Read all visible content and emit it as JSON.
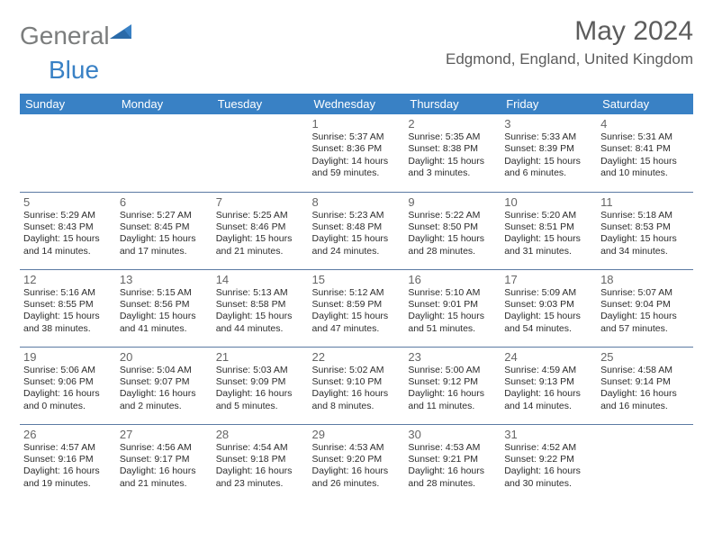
{
  "logo": {
    "word1": "General",
    "word2": "Blue",
    "word1_color": "#7b7d7d",
    "word2_color": "#3981c5",
    "shape_color": "#3981c5"
  },
  "title": "May 2024",
  "location": "Edgmond, England, United Kingdom",
  "colors": {
    "header_bg": "#3981c5",
    "header_text": "#ffffff",
    "border": "#5b7aa3",
    "daynum": "#666666",
    "body_text": "#2c2c2c",
    "title_text": "#5c5c5c",
    "page_bg": "#ffffff"
  },
  "typography": {
    "title_fontsize": 30,
    "location_fontsize": 17,
    "weekday_fontsize": 13,
    "daynum_fontsize": 13,
    "cell_fontsize": 10.5
  },
  "calendar": {
    "type": "table",
    "columns": [
      "Sunday",
      "Monday",
      "Tuesday",
      "Wednesday",
      "Thursday",
      "Friday",
      "Saturday"
    ],
    "weeks": [
      [
        null,
        null,
        null,
        {
          "n": "1",
          "sr": "Sunrise: 5:37 AM",
          "ss": "Sunset: 8:36 PM",
          "dl": "Daylight: 14 hours\nand 59 minutes."
        },
        {
          "n": "2",
          "sr": "Sunrise: 5:35 AM",
          "ss": "Sunset: 8:38 PM",
          "dl": "Daylight: 15 hours\nand 3 minutes."
        },
        {
          "n": "3",
          "sr": "Sunrise: 5:33 AM",
          "ss": "Sunset: 8:39 PM",
          "dl": "Daylight: 15 hours\nand 6 minutes."
        },
        {
          "n": "4",
          "sr": "Sunrise: 5:31 AM",
          "ss": "Sunset: 8:41 PM",
          "dl": "Daylight: 15 hours\nand 10 minutes."
        }
      ],
      [
        {
          "n": "5",
          "sr": "Sunrise: 5:29 AM",
          "ss": "Sunset: 8:43 PM",
          "dl": "Daylight: 15 hours\nand 14 minutes."
        },
        {
          "n": "6",
          "sr": "Sunrise: 5:27 AM",
          "ss": "Sunset: 8:45 PM",
          "dl": "Daylight: 15 hours\nand 17 minutes."
        },
        {
          "n": "7",
          "sr": "Sunrise: 5:25 AM",
          "ss": "Sunset: 8:46 PM",
          "dl": "Daylight: 15 hours\nand 21 minutes."
        },
        {
          "n": "8",
          "sr": "Sunrise: 5:23 AM",
          "ss": "Sunset: 8:48 PM",
          "dl": "Daylight: 15 hours\nand 24 minutes."
        },
        {
          "n": "9",
          "sr": "Sunrise: 5:22 AM",
          "ss": "Sunset: 8:50 PM",
          "dl": "Daylight: 15 hours\nand 28 minutes."
        },
        {
          "n": "10",
          "sr": "Sunrise: 5:20 AM",
          "ss": "Sunset: 8:51 PM",
          "dl": "Daylight: 15 hours\nand 31 minutes."
        },
        {
          "n": "11",
          "sr": "Sunrise: 5:18 AM",
          "ss": "Sunset: 8:53 PM",
          "dl": "Daylight: 15 hours\nand 34 minutes."
        }
      ],
      [
        {
          "n": "12",
          "sr": "Sunrise: 5:16 AM",
          "ss": "Sunset: 8:55 PM",
          "dl": "Daylight: 15 hours\nand 38 minutes."
        },
        {
          "n": "13",
          "sr": "Sunrise: 5:15 AM",
          "ss": "Sunset: 8:56 PM",
          "dl": "Daylight: 15 hours\nand 41 minutes."
        },
        {
          "n": "14",
          "sr": "Sunrise: 5:13 AM",
          "ss": "Sunset: 8:58 PM",
          "dl": "Daylight: 15 hours\nand 44 minutes."
        },
        {
          "n": "15",
          "sr": "Sunrise: 5:12 AM",
          "ss": "Sunset: 8:59 PM",
          "dl": "Daylight: 15 hours\nand 47 minutes."
        },
        {
          "n": "16",
          "sr": "Sunrise: 5:10 AM",
          "ss": "Sunset: 9:01 PM",
          "dl": "Daylight: 15 hours\nand 51 minutes."
        },
        {
          "n": "17",
          "sr": "Sunrise: 5:09 AM",
          "ss": "Sunset: 9:03 PM",
          "dl": "Daylight: 15 hours\nand 54 minutes."
        },
        {
          "n": "18",
          "sr": "Sunrise: 5:07 AM",
          "ss": "Sunset: 9:04 PM",
          "dl": "Daylight: 15 hours\nand 57 minutes."
        }
      ],
      [
        {
          "n": "19",
          "sr": "Sunrise: 5:06 AM",
          "ss": "Sunset: 9:06 PM",
          "dl": "Daylight: 16 hours\nand 0 minutes."
        },
        {
          "n": "20",
          "sr": "Sunrise: 5:04 AM",
          "ss": "Sunset: 9:07 PM",
          "dl": "Daylight: 16 hours\nand 2 minutes."
        },
        {
          "n": "21",
          "sr": "Sunrise: 5:03 AM",
          "ss": "Sunset: 9:09 PM",
          "dl": "Daylight: 16 hours\nand 5 minutes."
        },
        {
          "n": "22",
          "sr": "Sunrise: 5:02 AM",
          "ss": "Sunset: 9:10 PM",
          "dl": "Daylight: 16 hours\nand 8 minutes."
        },
        {
          "n": "23",
          "sr": "Sunrise: 5:00 AM",
          "ss": "Sunset: 9:12 PM",
          "dl": "Daylight: 16 hours\nand 11 minutes."
        },
        {
          "n": "24",
          "sr": "Sunrise: 4:59 AM",
          "ss": "Sunset: 9:13 PM",
          "dl": "Daylight: 16 hours\nand 14 minutes."
        },
        {
          "n": "25",
          "sr": "Sunrise: 4:58 AM",
          "ss": "Sunset: 9:14 PM",
          "dl": "Daylight: 16 hours\nand 16 minutes."
        }
      ],
      [
        {
          "n": "26",
          "sr": "Sunrise: 4:57 AM",
          "ss": "Sunset: 9:16 PM",
          "dl": "Daylight: 16 hours\nand 19 minutes."
        },
        {
          "n": "27",
          "sr": "Sunrise: 4:56 AM",
          "ss": "Sunset: 9:17 PM",
          "dl": "Daylight: 16 hours\nand 21 minutes."
        },
        {
          "n": "28",
          "sr": "Sunrise: 4:54 AM",
          "ss": "Sunset: 9:18 PM",
          "dl": "Daylight: 16 hours\nand 23 minutes."
        },
        {
          "n": "29",
          "sr": "Sunrise: 4:53 AM",
          "ss": "Sunset: 9:20 PM",
          "dl": "Daylight: 16 hours\nand 26 minutes."
        },
        {
          "n": "30",
          "sr": "Sunrise: 4:53 AM",
          "ss": "Sunset: 9:21 PM",
          "dl": "Daylight: 16 hours\nand 28 minutes."
        },
        {
          "n": "31",
          "sr": "Sunrise: 4:52 AM",
          "ss": "Sunset: 9:22 PM",
          "dl": "Daylight: 16 hours\nand 30 minutes."
        },
        null
      ]
    ]
  }
}
